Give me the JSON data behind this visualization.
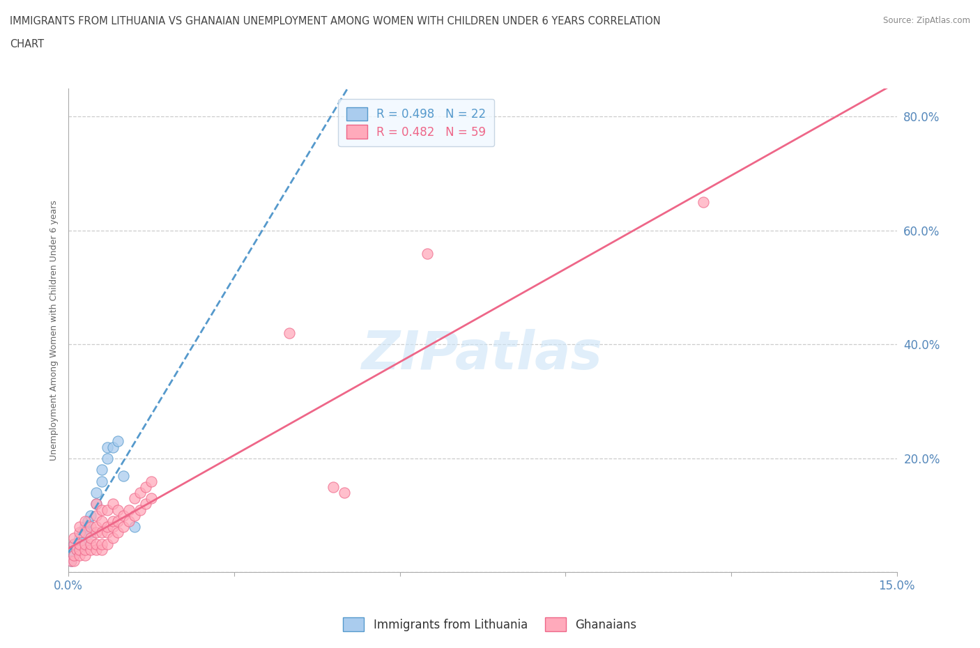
{
  "title_line1": "IMMIGRANTS FROM LITHUANIA VS GHANAIAN UNEMPLOYMENT AMONG WOMEN WITH CHILDREN UNDER 6 YEARS CORRELATION",
  "title_line2": "CHART",
  "source": "Source: ZipAtlas.com",
  "ylabel": "Unemployment Among Women with Children Under 6 years",
  "xlim": [
    0.0,
    0.15
  ],
  "ylim": [
    0.0,
    0.85
  ],
  "yticks": [
    0.0,
    0.2,
    0.4,
    0.6,
    0.8
  ],
  "ytick_labels": [
    "",
    "20.0%",
    "40.0%",
    "60.0%",
    "80.0%"
  ],
  "xticks": [
    0.0,
    0.03,
    0.06,
    0.09,
    0.12,
    0.15
  ],
  "xtick_labels": [
    "0.0%",
    "",
    "",
    "",
    "",
    "15.0%"
  ],
  "title_color": "#444444",
  "axis_color": "#5588bb",
  "grid_color": "#cccccc",
  "watermark": "ZIPatlas",
  "series": [
    {
      "name": "Immigrants from Lithuania",
      "R": 0.498,
      "N": 22,
      "color": "#aaccee",
      "trend_color": "#5599cc",
      "trend_style": "--",
      "x": [
        0.0005,
        0.001,
        0.0015,
        0.001,
        0.002,
        0.002,
        0.003,
        0.0025,
        0.003,
        0.004,
        0.0035,
        0.004,
        0.005,
        0.005,
        0.006,
        0.006,
        0.007,
        0.007,
        0.008,
        0.009,
        0.01,
        0.012
      ],
      "y": [
        0.02,
        0.03,
        0.04,
        0.05,
        0.04,
        0.06,
        0.05,
        0.07,
        0.08,
        0.07,
        0.09,
        0.1,
        0.12,
        0.14,
        0.16,
        0.18,
        0.2,
        0.22,
        0.22,
        0.23,
        0.17,
        0.08
      ]
    },
    {
      "name": "Ghanaians",
      "R": 0.482,
      "N": 59,
      "color": "#ffaabb",
      "trend_color": "#ee6688",
      "trend_style": "-",
      "x": [
        0.0005,
        0.001,
        0.001,
        0.001,
        0.0015,
        0.001,
        0.002,
        0.002,
        0.002,
        0.002,
        0.002,
        0.003,
        0.003,
        0.003,
        0.003,
        0.003,
        0.004,
        0.004,
        0.004,
        0.004,
        0.005,
        0.005,
        0.005,
        0.005,
        0.005,
        0.005,
        0.006,
        0.006,
        0.006,
        0.006,
        0.006,
        0.007,
        0.007,
        0.007,
        0.007,
        0.008,
        0.008,
        0.008,
        0.008,
        0.009,
        0.009,
        0.009,
        0.01,
        0.01,
        0.011,
        0.011,
        0.012,
        0.012,
        0.013,
        0.013,
        0.014,
        0.014,
        0.015,
        0.015,
        0.04,
        0.065,
        0.115,
        0.05,
        0.048
      ],
      "y": [
        0.02,
        0.02,
        0.03,
        0.05,
        0.04,
        0.06,
        0.03,
        0.04,
        0.05,
        0.07,
        0.08,
        0.03,
        0.04,
        0.05,
        0.07,
        0.09,
        0.04,
        0.05,
        0.06,
        0.08,
        0.04,
        0.05,
        0.07,
        0.08,
        0.1,
        0.12,
        0.04,
        0.05,
        0.07,
        0.09,
        0.11,
        0.05,
        0.07,
        0.08,
        0.11,
        0.06,
        0.08,
        0.09,
        0.12,
        0.07,
        0.09,
        0.11,
        0.08,
        0.1,
        0.09,
        0.11,
        0.1,
        0.13,
        0.11,
        0.14,
        0.12,
        0.15,
        0.13,
        0.16,
        0.42,
        0.56,
        0.65,
        0.14,
        0.15
      ]
    }
  ],
  "legend_box_color": "#f0f8ff",
  "legend_border_color": "#bbccdd",
  "background_color": "#ffffff"
}
